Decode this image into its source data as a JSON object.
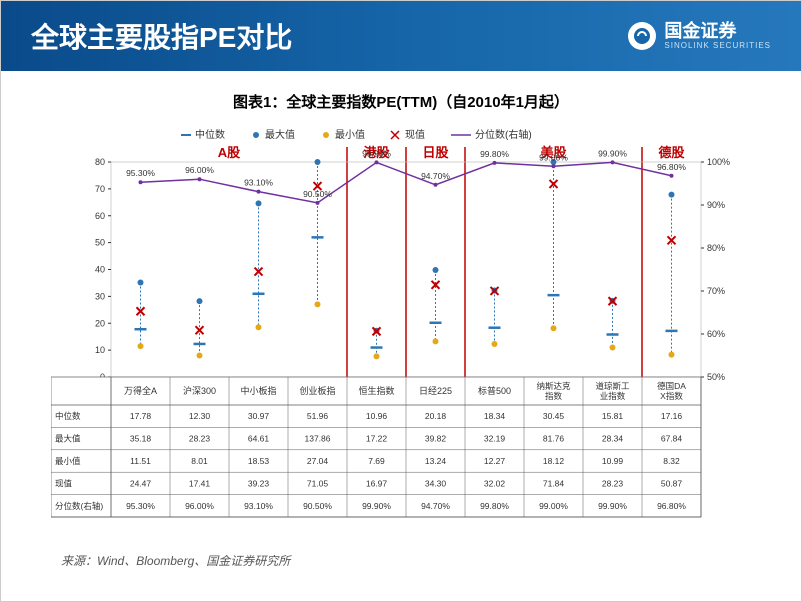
{
  "header": {
    "title": "全球主要股指PE对比",
    "logo_name": "国金证券",
    "logo_sub": "SINOLINK SECURITIES"
  },
  "chart": {
    "title": "图表1：全球主要指数PE(TTM)（自2010年1月起）",
    "legend": {
      "median": "中位数",
      "max": "最大值",
      "min": "最小值",
      "current": "现值",
      "percentile": "分位数(右轴)"
    },
    "colors": {
      "median_dash": "#2e75b6",
      "max_dot": "#2e75b6",
      "min_dot": "#e6a817",
      "current_x": "#c00000",
      "percentile_line": "#7030a0",
      "grid": "#bfbfbf",
      "region_label": "#c00000",
      "region_line": "#c00000",
      "table_border": "#595959",
      "dotted_connector": "#2e75b6"
    },
    "y_left": {
      "min": 0,
      "max": 80,
      "step": 10
    },
    "y_right": {
      "min": 50,
      "max": 100,
      "step": 10,
      "unit": "%"
    },
    "indices": [
      "万得全A",
      "沪深300",
      "中小板指",
      "创业板指",
      "恒生指数",
      "日经225",
      "标普500",
      "纳斯达克指数",
      "道琼斯工业指数",
      "德国DAX指数"
    ],
    "regions": [
      {
        "label": "A股",
        "start": 0,
        "end": 4
      },
      {
        "label": "港股",
        "start": 4,
        "end": 5
      },
      {
        "label": "日股",
        "start": 5,
        "end": 6
      },
      {
        "label": "美股",
        "start": 6,
        "end": 9
      },
      {
        "label": "德股",
        "start": 9,
        "end": 10
      }
    ],
    "rows": {
      "median": {
        "label": "中位数",
        "values": [
          17.78,
          12.3,
          30.97,
          51.96,
          10.96,
          20.18,
          18.34,
          30.45,
          15.81,
          17.16
        ]
      },
      "max": {
        "label": "最大值",
        "values": [
          35.18,
          28.23,
          64.61,
          137.86,
          17.22,
          39.82,
          32.19,
          81.76,
          28.34,
          67.84
        ]
      },
      "min": {
        "label": "最小值",
        "values": [
          11.51,
          8.01,
          18.53,
          27.04,
          7.69,
          13.24,
          12.27,
          18.12,
          10.99,
          8.32
        ]
      },
      "current": {
        "label": "现值",
        "values": [
          24.47,
          17.41,
          39.23,
          71.05,
          16.97,
          34.3,
          32.02,
          71.84,
          28.23,
          50.87
        ]
      },
      "percentile": {
        "label": "分位数(右轴)",
        "values": [
          95.3,
          96.0,
          93.1,
          90.5,
          99.9,
          94.7,
          99.8,
          99.0,
          99.9,
          96.8
        ],
        "unit": "%"
      }
    }
  },
  "source": "来源：Wind、Bloomberg、国金证券研究所"
}
